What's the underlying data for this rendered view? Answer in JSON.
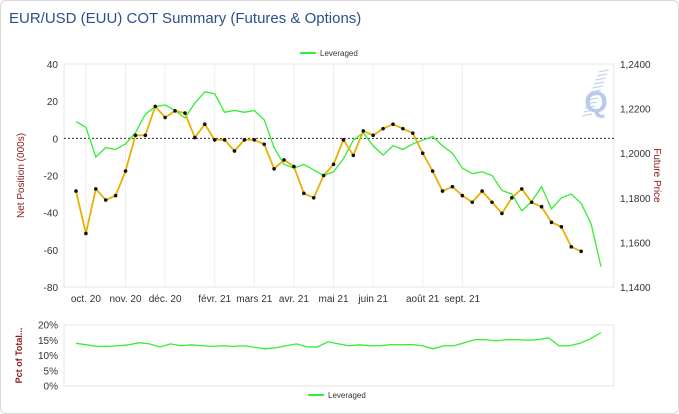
{
  "header": {
    "title": "EUR/USD (EUU) COT Summary (Futures & Options)"
  },
  "colors": {
    "leveraged": "#33ee33",
    "price": "#e8b100",
    "axis_label": "#8b1a1a",
    "title": "#2d4f8c",
    "logo": "#b9cbe8"
  },
  "logo_icon": "q-logo-icon",
  "chart_data": [
    {
      "type": "line",
      "title": "EUR/USD (EUU) COT Summary (Futures & Options)",
      "ylabel": "Net Position (000s)",
      "y2label": "Future Price",
      "ylim": [
        -80,
        40
      ],
      "y2lim": [
        1.14,
        1.24
      ],
      "yticks": [
        "40",
        "20",
        "0",
        "-20",
        "-40",
        "-60",
        "-80"
      ],
      "y2ticks": [
        "1,2400",
        "1,2200",
        "1,2000",
        "1,1800",
        "1,1600",
        "1,1400"
      ],
      "months": [
        {
          "label": "oct. 20",
          "x": 1
        },
        {
          "label": "nov. 20",
          "x": 5
        },
        {
          "label": "déc. 20",
          "x": 9
        },
        {
          "label": "févr. 21",
          "x": 14
        },
        {
          "label": "mars 21",
          "x": 18
        },
        {
          "label": "avr. 21",
          "x": 22
        },
        {
          "label": "mai 21",
          "x": 26
        },
        {
          "label": "juin 21",
          "x": 30
        },
        {
          "label": "août 21",
          "x": 35
        },
        {
          "label": "sept. 21",
          "x": 39
        }
      ],
      "zero_line": 0,
      "legend": "top-center",
      "series": [
        {
          "name": "Leveraged",
          "axis": "left",
          "values": [
            9,
            6,
            -10,
            -5,
            -6,
            -3,
            3,
            13,
            17,
            18,
            15,
            11,
            19,
            25,
            24,
            14,
            15,
            14,
            15,
            10,
            -5,
            -14,
            -16,
            -14,
            -17,
            -20,
            -18,
            -11,
            -1,
            3,
            -4,
            -9,
            -4,
            -6,
            -3,
            -1,
            1,
            -4,
            -8,
            -16,
            -19,
            -18,
            -20,
            -28,
            -30,
            -39,
            -34,
            -26,
            -38,
            -32,
            -30,
            -35,
            -46,
            -69
          ]
        },
        {
          "name": "",
          "axis": "right",
          "values": [
            1.183,
            1.164,
            1.184,
            1.179,
            1.181,
            1.192,
            1.208,
            1.208,
            1.221,
            1.216,
            1.219,
            1.218,
            1.207,
            1.213,
            1.206,
            1.206,
            1.201,
            1.206,
            1.206,
            1.204,
            1.193,
            1.197,
            1.194,
            1.182,
            1.18,
            1.19,
            1.195,
            1.206,
            1.199,
            1.21,
            1.208,
            1.211,
            1.213,
            1.211,
            1.209,
            1.2,
            1.192,
            1.183,
            1.185,
            1.181,
            1.178,
            1.183,
            1.178,
            1.173,
            1.18,
            1.184,
            1.178,
            1.176,
            1.169,
            1.167,
            1.158,
            1.156
          ]
        }
      ]
    },
    {
      "type": "line",
      "ylabel": "Pct of Total...",
      "ylim": [
        0,
        20
      ],
      "yticks": [
        "20%",
        "15%",
        "10%",
        "5%",
        "0%"
      ],
      "legend": "bottom-center",
      "series": [
        {
          "name": "Leveraged",
          "values": [
            14,
            13.5,
            13,
            13,
            13.2,
            13.5,
            14.2,
            13.8,
            12.8,
            13.8,
            13.2,
            13.5,
            13.2,
            13,
            13.2,
            13,
            13.2,
            12.7,
            12.2,
            12.5,
            13.2,
            13.8,
            12.8,
            12.8,
            14.5,
            13.8,
            13.2,
            13.5,
            13.2,
            13.2,
            13.6,
            13.5,
            13.6,
            13.2,
            12.2,
            13.2,
            13.2,
            14.2,
            15.2,
            15.2,
            14.8,
            15.2,
            15.2,
            15,
            15.2,
            15.8,
            13.2,
            13.2,
            14,
            15.5,
            17.5
          ]
        }
      ]
    }
  ]
}
